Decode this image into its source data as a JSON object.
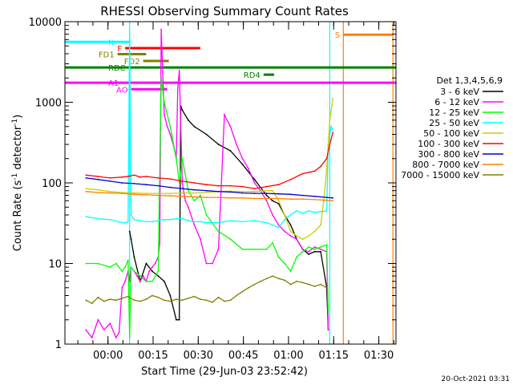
{
  "chart_data": {
    "type": "line",
    "title": "RHESSI Observing Summary Count Rates",
    "xlabel": "Start Time (29-Jun-03 23:52:42)",
    "ylabel": "Count Rate (s^-1 detector^-1)",
    "ylabel_main": "Count Rate (s",
    "ylabel_sup1": "-1",
    "ylabel_mid": " detector",
    "ylabel_sup2": "-1",
    "ylabel_end": ")",
    "x_unit": "minutes since 23:52:42",
    "xlim": [
      -7,
      103
    ],
    "ylim": [
      1,
      10000
    ],
    "yscale": "log",
    "x_ticks": [
      {
        "value": 7.3,
        "label": "00:00"
      },
      {
        "value": 22.3,
        "label": "00:15"
      },
      {
        "value": 37.3,
        "label": "00:30"
      },
      {
        "value": 52.3,
        "label": "00:45"
      },
      {
        "value": 67.3,
        "label": "01:00"
      },
      {
        "value": 82.3,
        "label": "01:15"
      },
      {
        "value": 97.3,
        "label": "01:30"
      }
    ],
    "y_ticks": [
      {
        "value": 1,
        "label": "1"
      },
      {
        "value": 10,
        "label": "10"
      },
      {
        "value": 100,
        "label": "100"
      },
      {
        "value": 1000,
        "label": "1000"
      },
      {
        "value": 10000,
        "label": "10000"
      }
    ],
    "legend_title": "Det 1,3,4,5,6,9",
    "legend_position": "right",
    "series": [
      {
        "name": "3 - 6 keV",
        "color": "#000000",
        "x": [
          14.5,
          15,
          16,
          18,
          20,
          22,
          24,
          26,
          28,
          30,
          31,
          31.5,
          32,
          34,
          36,
          40,
          44,
          48,
          52,
          56,
          60,
          62,
          64,
          66,
          68,
          70,
          72,
          74,
          76,
          78,
          80,
          80.5
        ],
        "y": [
          25,
          20,
          12,
          6,
          10,
          8,
          7,
          6,
          4,
          2,
          2,
          900,
          800,
          600,
          500,
          400,
          300,
          250,
          170,
          110,
          70,
          60,
          55,
          40,
          30,
          20,
          15,
          13,
          14,
          14,
          5,
          1.5
        ]
      },
      {
        "name": "6 - 12 keV",
        "color": "#ff00ff",
        "x": [
          0,
          2,
          4,
          6,
          8,
          10,
          11,
          12,
          13,
          14,
          14.5,
          15,
          16,
          17,
          18,
          19,
          20,
          21,
          22,
          23,
          24,
          24.5,
          25,
          26,
          27,
          28,
          29,
          30,
          30.5,
          31,
          32,
          33,
          34,
          36,
          38,
          40,
          42,
          44,
          46,
          48,
          50,
          52,
          54,
          56,
          58,
          60,
          62,
          64,
          66,
          68,
          70,
          72,
          74,
          76,
          78,
          80,
          80.5
        ],
        "y": [
          1.5,
          1.2,
          2,
          1.5,
          1.8,
          1.2,
          1.4,
          5,
          6,
          8,
          6,
          9,
          8,
          7,
          6,
          7,
          6,
          8,
          9,
          10,
          12,
          18,
          8000,
          700,
          500,
          400,
          300,
          200,
          1500,
          2500,
          100,
          60,
          50,
          30,
          20,
          10,
          10,
          15,
          700,
          500,
          300,
          200,
          150,
          100,
          80,
          60,
          40,
          30,
          25,
          22,
          20,
          15,
          14,
          16,
          15,
          14,
          1.5
        ]
      },
      {
        "name": "12 - 25 keV",
        "color": "#00ff00",
        "x": [
          0,
          4,
          8,
          10,
          12,
          13,
          14,
          14.5,
          15,
          16,
          18,
          20,
          22,
          24,
          25,
          26,
          28,
          30,
          31,
          32,
          34,
          36,
          38,
          40,
          44,
          48,
          52,
          56,
          60,
          62,
          64,
          66,
          68,
          70,
          72,
          74,
          76,
          78,
          80,
          80.5
        ],
        "y": [
          10,
          10,
          9,
          10,
          8,
          9,
          11,
          1.2,
          9,
          8,
          7,
          6,
          6,
          8,
          2000,
          1000,
          500,
          200,
          100,
          200,
          80,
          60,
          70,
          40,
          25,
          20,
          15,
          15,
          15,
          18,
          12,
          10,
          8,
          12,
          14,
          16,
          15,
          16,
          17,
          2.5
        ]
      },
      {
        "name": "25 - 50 keV",
        "color": "#00ffff",
        "x": [
          0,
          4,
          8,
          12,
          13,
          14,
          14.5,
          15,
          16,
          18,
          20,
          22,
          24,
          26,
          28,
          30,
          32,
          34,
          36,
          38,
          40,
          44,
          48,
          52,
          56,
          60,
          62,
          64,
          66,
          68,
          70,
          72,
          74,
          76,
          78,
          80,
          80.5,
          81,
          81.5,
          82
        ],
        "y": [
          38,
          36,
          35,
          32,
          32,
          33,
          8000,
          40,
          35,
          34,
          33,
          33,
          34,
          35,
          35,
          36,
          36,
          34,
          33,
          33,
          32,
          32,
          34,
          33,
          34,
          32,
          30,
          28,
          35,
          40,
          45,
          42,
          45,
          43,
          44,
          45,
          300,
          400,
          500,
          450
        ]
      },
      {
        "name": "50 - 100 keV",
        "color": "#cccc00",
        "x": [
          0,
          4,
          8,
          12,
          16,
          20,
          24,
          28,
          32,
          36,
          40,
          44,
          48,
          52,
          56,
          60,
          62,
          64,
          66,
          68,
          70,
          72,
          74,
          76,
          78,
          79,
          80,
          81,
          82
        ],
        "y": [
          85,
          82,
          78,
          76,
          75,
          74,
          74,
          74,
          75,
          75,
          76,
          78,
          79,
          78,
          78,
          80,
          80,
          60,
          40,
          25,
          22,
          20,
          22,
          25,
          30,
          60,
          150,
          600,
          1100
        ]
      },
      {
        "name": "100 - 300 keV",
        "color": "#ff0000",
        "x": [
          0,
          4,
          8,
          12,
          14,
          16,
          18,
          20,
          24,
          28,
          32,
          36,
          40,
          44,
          48,
          52,
          56,
          60,
          64,
          68,
          72,
          76,
          78,
          80,
          81,
          82
        ],
        "y": [
          125,
          120,
          115,
          118,
          120,
          125,
          118,
          120,
          115,
          112,
          105,
          100,
          95,
          92,
          92,
          90,
          85,
          90,
          95,
          110,
          130,
          140,
          160,
          200,
          300,
          420
        ]
      },
      {
        "name": "300 - 800 keV",
        "color": "#0000cc",
        "x": [
          0,
          4,
          8,
          12,
          16,
          20,
          24,
          28,
          32,
          36,
          40,
          44,
          48,
          52,
          56,
          60,
          64,
          68,
          72,
          76,
          80,
          82
        ],
        "y": [
          115,
          110,
          105,
          100,
          98,
          95,
          92,
          88,
          85,
          82,
          80,
          78,
          77,
          75,
          74,
          74,
          73,
          72,
          70,
          68,
          66,
          65
        ]
      },
      {
        "name": "800 - 7000 keV",
        "color": "#ff8000",
        "x": [
          0,
          4,
          8,
          12,
          16,
          20,
          24,
          28,
          32,
          36,
          40,
          44,
          48,
          52,
          56,
          60,
          64,
          68,
          72,
          76,
          80,
          82
        ],
        "y": [
          78,
          76,
          75,
          74,
          72,
          71,
          70,
          69,
          68,
          67,
          66,
          66,
          65,
          65,
          64,
          64,
          64,
          63,
          63,
          62,
          61,
          60
        ]
      },
      {
        "name": "7000 - 15000 keV",
        "color": "#808000",
        "x": [
          0,
          2,
          4,
          6,
          8,
          10,
          12,
          14,
          16,
          18,
          20,
          22,
          24,
          26,
          28,
          30,
          32,
          34,
          36,
          38,
          40,
          42,
          44,
          46,
          48,
          50,
          52,
          54,
          56,
          58,
          60,
          62,
          64,
          66,
          68,
          70,
          72,
          74,
          76,
          78,
          80
        ],
        "y": [
          3.5,
          3.2,
          3.8,
          3.4,
          3.6,
          3.5,
          3.7,
          3.9,
          3.5,
          3.4,
          3.6,
          4.0,
          3.8,
          3.5,
          3.4,
          3.6,
          3.5,
          3.7,
          3.9,
          3.6,
          3.5,
          3.3,
          3.8,
          3.4,
          3.5,
          4.0,
          4.5,
          5.0,
          5.5,
          6.0,
          6.5,
          7.0,
          6.5,
          6.2,
          5.5,
          6.0,
          5.8,
          5.5,
          5.2,
          5.5,
          5.0
        ]
      }
    ],
    "annotations": [
      {
        "label": "N",
        "color": "#00ffff",
        "x": [
          -7,
          14.5
        ],
        "y": 5600
      },
      {
        "label": "F",
        "color": "#ff0000",
        "x": [
          13,
          38
        ],
        "y": 4700
      },
      {
        "label": "FD1",
        "color": "#808000",
        "x": [
          10.5,
          20
        ],
        "y": 3950
      },
      {
        "label": "FD2",
        "color": "#808000",
        "x": [
          19,
          27.5
        ],
        "y": 3250
      },
      {
        "label": "RDC",
        "color": "#008000",
        "x": [
          -7,
          103
        ],
        "y": 2700
      },
      {
        "label": "RD4",
        "color": "#008000",
        "x": [
          59,
          62.5
        ],
        "y": 2200
      },
      {
        "label": "AO",
        "color": "#ff00ff",
        "x": [
          15,
          27
        ],
        "y": 1450
      },
      {
        "label": "A1",
        "color": "#ff00ff",
        "x": [
          -7,
          103
        ],
        "y": 1750
      },
      {
        "label": "S",
        "color": "#ff8000",
        "x": [
          85.5,
          102
        ],
        "y": 6900
      }
    ],
    "markers": [
      {
        "color": "#00ffff",
        "x": 14.5
      },
      {
        "color": "#00ffff",
        "x": 81
      },
      {
        "color": "#ff8000",
        "x": 85.5
      },
      {
        "color": "#ff8000",
        "x": 102
      }
    ],
    "timestamp": "20-Oct-2021 03:31"
  }
}
